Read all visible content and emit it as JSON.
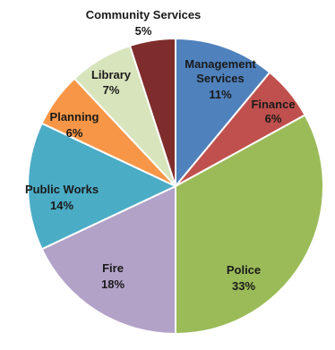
{
  "chart_data": {
    "type": "pie",
    "title": "",
    "slices": [
      {
        "label": "Management Services",
        "value": 11,
        "percent_label": "11%",
        "color": "#4f81bd"
      },
      {
        "label": "Finance",
        "value": 6,
        "percent_label": "6%",
        "color": "#c0504d"
      },
      {
        "label": "Police",
        "value": 33,
        "percent_label": "33%",
        "color": "#9bbb59"
      },
      {
        "label": "Fire",
        "value": 18,
        "percent_label": "18%",
        "color": "#b3a2c7"
      },
      {
        "label": "Public Works",
        "value": 14,
        "percent_label": "14%",
        "color": "#4bacc6"
      },
      {
        "label": "Planning",
        "value": 6,
        "percent_label": "6%",
        "color": "#f79646"
      },
      {
        "label": "Library",
        "value": 7,
        "percent_label": "7%",
        "color": "#d8e4bc"
      },
      {
        "label": "Community Services",
        "value": 5,
        "percent_label": "5%",
        "color": "#7f2c2c"
      }
    ],
    "start_angle_deg": 0,
    "direction": "clockwise",
    "label_placement": "inside",
    "legend": "none"
  }
}
